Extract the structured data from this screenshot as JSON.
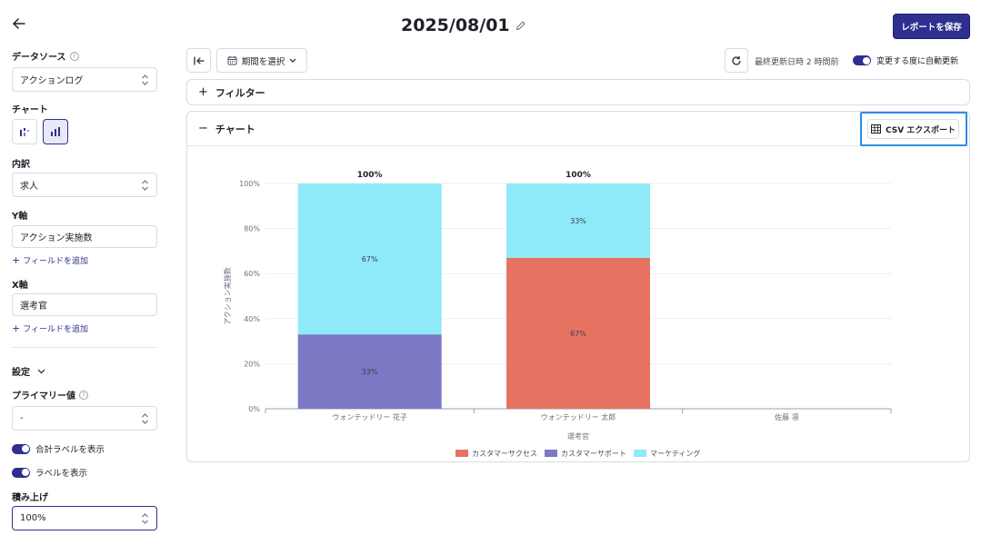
{
  "sidebar": {
    "data_source": {
      "label": "データソース",
      "value": "アクションログ"
    },
    "chart": {
      "label": "チャート"
    },
    "breakdown": {
      "label": "内訳",
      "value": "求人"
    },
    "y_axis": {
      "label": "Y軸",
      "value": "アクション実施数",
      "add_field": "フィールドを追加"
    },
    "x_axis": {
      "label": "X軸",
      "value": "選考官",
      "add_field": "フィールドを追加"
    },
    "settings": {
      "label": "設定"
    },
    "primary_value": {
      "label": "プライマリー値",
      "value": "-"
    },
    "show_total_label": "合計ラベルを表示",
    "show_label": "ラベルを表示",
    "stacking": {
      "label": "積み上げ",
      "value": "100%"
    }
  },
  "header": {
    "title": "2025/08/01",
    "save_label": "レポートを保存"
  },
  "toolbar": {
    "period_label": "期間を選択",
    "last_updated": "最終更新日時 2 時間前",
    "auto_update_label": "変更する度に自動更新"
  },
  "filter_panel": {
    "label": "フィルター"
  },
  "chart_panel": {
    "label": "チャート",
    "csv_export_label": "CSV エクスポート"
  },
  "colors": {
    "accent": "#2e2f8f",
    "customer_success": "#e67361",
    "customer_support": "#7b78c4",
    "marketing": "#8eeaf9",
    "highlight": "#2b8de8"
  },
  "chart_data": {
    "type": "bar",
    "stacked": "100%",
    "categories": [
      "ウォンテッドリー 花子",
      "ウォンテッドリー 太郎",
      "佐藤 凛"
    ],
    "series": [
      {
        "name": "カスタマーサクセス",
        "values": [
          0,
          67,
          0
        ]
      },
      {
        "name": "カスタマーサポート",
        "values": [
          33,
          0,
          0
        ]
      },
      {
        "name": "マーケティング",
        "values": [
          67,
          33,
          0
        ]
      }
    ],
    "totals": [
      "100%",
      "100%",
      ""
    ],
    "xlabel": "選考官",
    "ylabel": "アクション実施数",
    "ylim": [
      0,
      100
    ],
    "yticks": [
      "0%",
      "20%",
      "40%",
      "60%",
      "80%",
      "100%"
    ],
    "legend": "bottom",
    "grid": true
  }
}
